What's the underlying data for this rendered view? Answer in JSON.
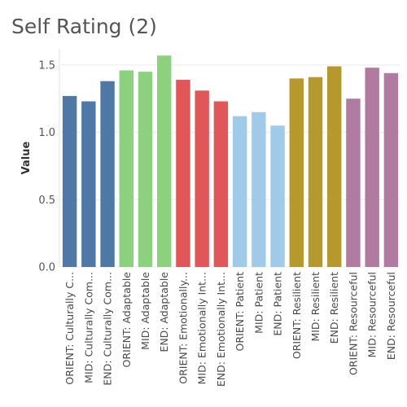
{
  "chart_data": {
    "type": "bar",
    "title": "Self Rating (2)",
    "ylabel": "Value",
    "xlabel": "",
    "ylim": [
      0,
      1.62
    ],
    "yticks": [
      0.0,
      0.5,
      1.0,
      1.5
    ],
    "ytick_labels": [
      "0.0",
      "0.5",
      "1.0",
      "1.5"
    ],
    "grid": true,
    "categories": [
      "ORIENT: Culturally C...",
      "MID: Culturally Com...",
      "END: Culturally Com...",
      "ORIENT: Adaptable",
      "MID: Adaptable",
      "END: Adaptable",
      "ORIENT: Emotionally...",
      "MID: Emotionally Int...",
      "END: Emotionally Int...",
      "ORIENT: Patient",
      "MID: Patient",
      "END: Patient",
      "ORIENT: Resilient",
      "MID: Resilient",
      "END: Resilient",
      "ORIENT: Resourceful",
      "MID: Resourceful",
      "END: Resourceful"
    ],
    "values": [
      1.27,
      1.23,
      1.38,
      1.46,
      1.45,
      1.57,
      1.39,
      1.31,
      1.23,
      1.12,
      1.15,
      1.05,
      1.4,
      1.41,
      1.49,
      1.25,
      1.48,
      1.44
    ],
    "colors": [
      "#4e79a7",
      "#4e79a7",
      "#4e79a7",
      "#8cd17d",
      "#8cd17d",
      "#8cd17d",
      "#e15759",
      "#e15759",
      "#e15759",
      "#a0cbe8",
      "#a0cbe8",
      "#a0cbe8",
      "#b6992d",
      "#b6992d",
      "#b6992d",
      "#b07aa1",
      "#b07aa1",
      "#b07aa1"
    ]
  }
}
